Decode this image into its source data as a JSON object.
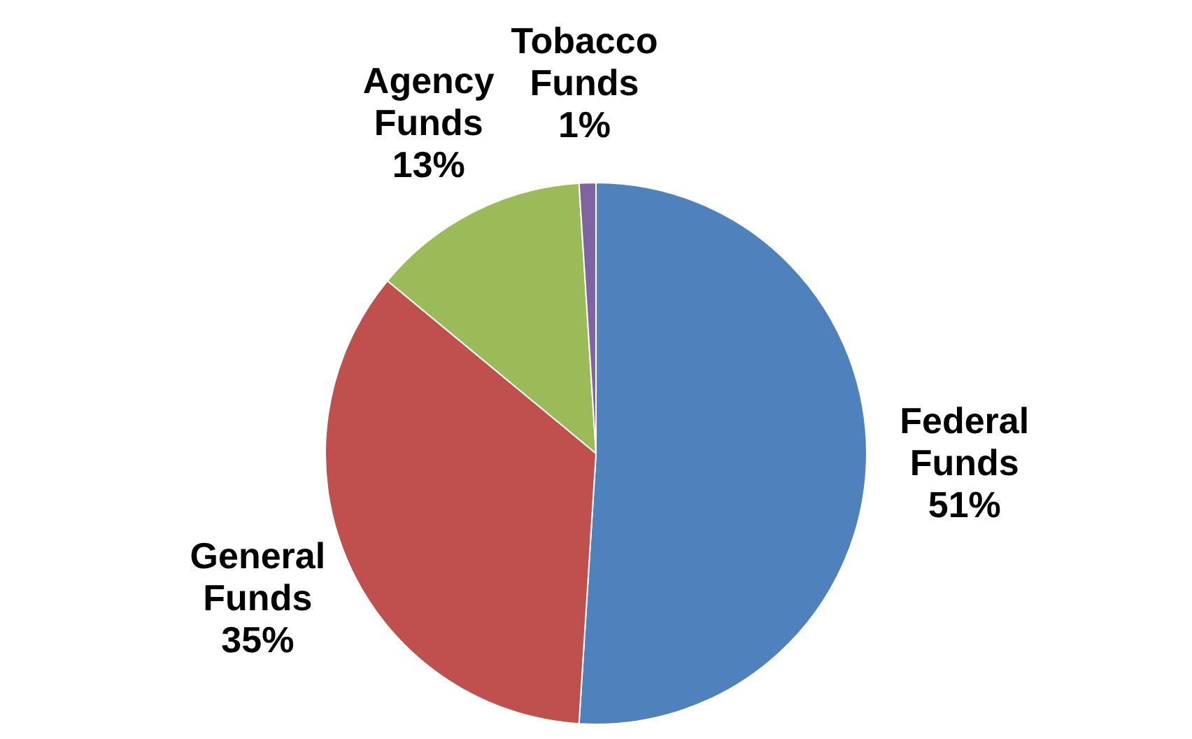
{
  "chart_data": {
    "type": "pie",
    "categories": [
      "Federal Funds",
      "General Funds",
      "Agency Funds",
      "Tobacco Funds"
    ],
    "values": [
      51,
      35,
      13,
      1
    ],
    "colors": [
      "#4f81bd",
      "#c0504d",
      "#9bbb59",
      "#8064a2"
    ],
    "value_labels": [
      "51%",
      "35%",
      "13%",
      "1%"
    ],
    "legend": false
  }
}
